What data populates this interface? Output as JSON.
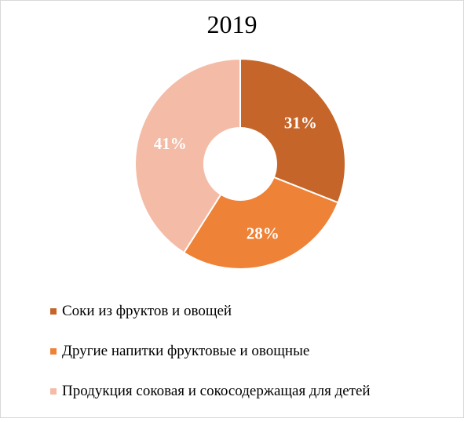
{
  "chart_data": {
    "type": "pie",
    "title": "2019",
    "donut": true,
    "legend_position": "bottom",
    "categories": [
      "Соки из фруктов и овощей",
      "Другие напитки фруктовые и овощные",
      "Продукция соковая и сокосодержащая для детей"
    ],
    "values": [
      31,
      28,
      41
    ],
    "labels": [
      "31%",
      "28%",
      "41%"
    ],
    "colors": [
      "#C5652A",
      "#EE8237",
      "#F4BBA6"
    ]
  }
}
